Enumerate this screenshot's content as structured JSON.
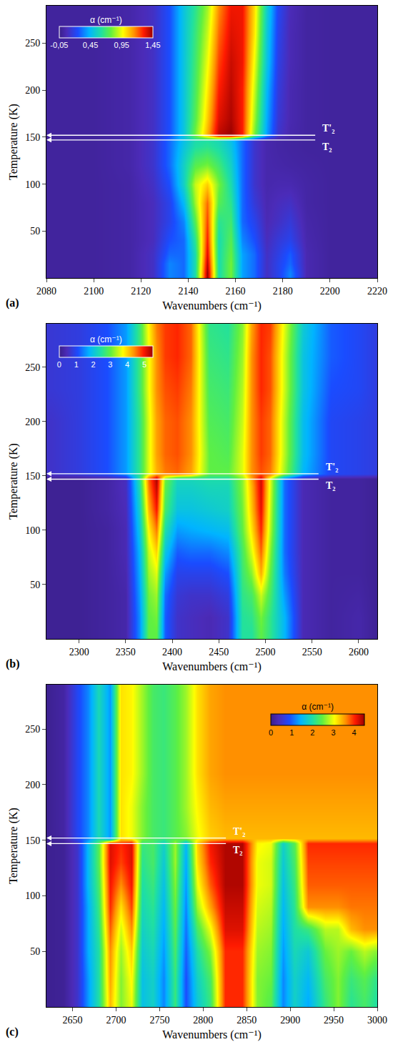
{
  "chart_data": [
    {
      "type": "heatmap",
      "panel_label": "(a)",
      "x_label": "Wavenumbers (cm⁻¹)",
      "y_label": "Temperature (K)",
      "xlim": [
        2080,
        2220
      ],
      "xticks": [
        2080,
        2100,
        2120,
        2140,
        2160,
        2180,
        2200,
        2220
      ],
      "ylim": [
        0,
        290
      ],
      "yticks": [
        50,
        100,
        150,
        200,
        250
      ],
      "colorbar": {
        "title": "α (cm⁻¹)",
        "range": [
          -0.05,
          1.45
        ],
        "ticks": [
          {
            "value": 1.45,
            "label": "1,45"
          },
          {
            "value": 0.95,
            "label": "0,95"
          },
          {
            "value": 0.45,
            "label": "0,45"
          },
          {
            "value": -0.05,
            "label": "-0,05"
          }
        ]
      },
      "annotations": [
        {
          "text": "T'₂",
          "y": 152
        },
        {
          "text": "T₂",
          "y": 147
        }
      ],
      "x": [
        2080,
        2100,
        2115,
        2125,
        2132,
        2138,
        2143,
        2148,
        2153,
        2158,
        2163,
        2168,
        2173,
        2178,
        2183,
        2190,
        2200,
        2220
      ],
      "y": [
        5,
        15,
        25,
        40,
        60,
        80,
        100,
        120,
        140,
        147,
        152,
        170,
        200,
        230,
        260,
        290
      ],
      "values": [
        [
          0,
          0,
          0.02,
          0.1,
          0.35,
          0.3,
          0.6,
          1.45,
          0.6,
          0.8,
          0.4,
          0.3,
          0.1,
          0.2,
          0.35,
          0.05,
          0,
          0
        ],
        [
          0,
          0,
          0.02,
          0.1,
          0.35,
          0.3,
          0.6,
          1.4,
          0.6,
          0.8,
          0.4,
          0.3,
          0.1,
          0.2,
          0.3,
          0.05,
          0,
          0
        ],
        [
          0,
          0,
          0.02,
          0.1,
          0.3,
          0.3,
          0.6,
          1.35,
          0.6,
          0.78,
          0.4,
          0.3,
          0.1,
          0.18,
          0.28,
          0.05,
          0,
          0
        ],
        [
          0,
          0,
          0.02,
          0.08,
          0.25,
          0.3,
          0.65,
          1.3,
          0.6,
          0.75,
          0.35,
          0.25,
          0.08,
          0.15,
          0.2,
          0.04,
          0,
          0
        ],
        [
          0,
          0,
          0.02,
          0.08,
          0.2,
          0.35,
          0.75,
          1.25,
          0.65,
          0.7,
          0.3,
          0.2,
          0.06,
          0.1,
          0.15,
          0.03,
          0,
          0
        ],
        [
          0,
          0,
          0.02,
          0.08,
          0.2,
          0.45,
          0.85,
          1.2,
          0.75,
          0.65,
          0.3,
          0.15,
          0.05,
          0.08,
          0.1,
          0.02,
          0,
          0
        ],
        [
          0,
          0,
          0.02,
          0.1,
          0.25,
          0.55,
          0.9,
          1.05,
          0.8,
          0.6,
          0.3,
          0.12,
          0.04,
          0.05,
          0.05,
          0.02,
          0,
          0
        ],
        [
          0,
          0,
          0.03,
          0.12,
          0.3,
          0.55,
          0.75,
          0.8,
          0.7,
          0.55,
          0.3,
          0.12,
          0.04,
          0.03,
          0.02,
          0.01,
          0,
          0
        ],
        [
          0,
          0,
          0.03,
          0.12,
          0.3,
          0.5,
          0.62,
          0.65,
          0.6,
          0.5,
          0.3,
          0.12,
          0.04,
          0.02,
          0.01,
          0,
          0,
          0
        ],
        [
          0,
          0,
          0.03,
          0.12,
          0.3,
          0.48,
          0.6,
          0.62,
          0.58,
          0.48,
          0.3,
          0.12,
          0.04,
          0.02,
          0.01,
          0,
          0,
          0
        ],
        [
          0,
          0,
          0.03,
          0.1,
          0.25,
          0.5,
          0.8,
          1.1,
          1.4,
          1.45,
          1.3,
          0.8,
          0.4,
          0.12,
          0.04,
          0.01,
          0,
          0
        ],
        [
          0,
          0,
          0.03,
          0.1,
          0.25,
          0.5,
          0.75,
          1.05,
          1.35,
          1.42,
          1.3,
          0.85,
          0.42,
          0.14,
          0.05,
          0.01,
          0,
          0
        ],
        [
          0,
          0,
          0.03,
          0.1,
          0.25,
          0.5,
          0.72,
          1.0,
          1.3,
          1.4,
          1.3,
          0.9,
          0.45,
          0.16,
          0.05,
          0.01,
          0,
          0
        ],
        [
          0,
          0,
          0.03,
          0.1,
          0.25,
          0.5,
          0.7,
          0.95,
          1.25,
          1.38,
          1.32,
          0.95,
          0.5,
          0.18,
          0.06,
          0.01,
          0,
          0
        ],
        [
          0,
          0,
          0.03,
          0.1,
          0.25,
          0.5,
          0.68,
          0.9,
          1.2,
          1.35,
          1.32,
          1.0,
          0.52,
          0.2,
          0.06,
          0.01,
          0,
          0
        ],
        [
          0,
          0,
          0.03,
          0.1,
          0.25,
          0.5,
          0.65,
          0.85,
          1.15,
          1.32,
          1.32,
          1.02,
          0.55,
          0.22,
          0.07,
          0.01,
          0,
          0
        ]
      ]
    },
    {
      "type": "heatmap",
      "panel_label": "(b)",
      "x_label": "Wavenumbers (cm⁻¹)",
      "y_label": "Temperature (K)",
      "xlim": [
        2265,
        2620
      ],
      "xticks": [
        2300,
        2350,
        2400,
        2450,
        2500,
        2550,
        2600
      ],
      "ylim": [
        0,
        290
      ],
      "yticks": [
        50,
        100,
        150,
        200,
        250
      ],
      "colorbar": {
        "title": "α (cm⁻¹)",
        "range": [
          0,
          5.5
        ],
        "ticks": [
          5,
          4,
          3,
          2,
          1,
          0
        ]
      },
      "annotations": [
        {
          "text": "T'₂",
          "y": 152
        },
        {
          "text": "T₂",
          "y": 147
        }
      ],
      "x": [
        2270,
        2300,
        2330,
        2350,
        2365,
        2375,
        2383,
        2392,
        2405,
        2420,
        2440,
        2460,
        2475,
        2485,
        2495,
        2505,
        2520,
        2540,
        2570,
        2600,
        2620
      ],
      "y": [
        5,
        20,
        40,
        60,
        80,
        100,
        120,
        140,
        147,
        152,
        170,
        200,
        230,
        260,
        290
      ],
      "values": [
        [
          0.1,
          0.1,
          0.2,
          0.3,
          1.5,
          3.0,
          3.0,
          1.2,
          0.6,
          0.5,
          0.4,
          0.6,
          2.5,
          2.5,
          3.0,
          2.6,
          1.8,
          0.4,
          0.2,
          0.3,
          0.1
        ],
        [
          0.1,
          0.1,
          0.2,
          0.3,
          1.5,
          3.0,
          3.1,
          1.2,
          0.6,
          0.5,
          0.4,
          0.6,
          2.5,
          2.6,
          3.1,
          2.6,
          1.8,
          0.4,
          0.2,
          0.3,
          0.1
        ],
        [
          0.1,
          0.1,
          0.2,
          0.3,
          1.6,
          3.1,
          3.3,
          1.3,
          0.7,
          0.6,
          0.6,
          0.8,
          2.6,
          2.8,
          3.5,
          2.8,
          1.6,
          0.4,
          0.2,
          0.25,
          0.1
        ],
        [
          0.1,
          0.1,
          0.2,
          0.35,
          1.7,
          3.3,
          3.6,
          1.6,
          0.9,
          0.9,
          0.9,
          1.1,
          2.7,
          3.2,
          4.2,
          3.0,
          1.4,
          0.4,
          0.2,
          0.2,
          0.1
        ],
        [
          0.1,
          0.1,
          0.2,
          0.4,
          1.8,
          3.5,
          4.0,
          2.0,
          1.2,
          1.3,
          1.3,
          1.5,
          2.8,
          3.6,
          4.6,
          3.2,
          1.3,
          0.4,
          0.2,
          0.2,
          0.1
        ],
        [
          0.1,
          0.1,
          0.2,
          0.4,
          2.0,
          3.8,
          4.5,
          2.4,
          1.6,
          1.7,
          1.8,
          1.9,
          3.0,
          3.9,
          4.9,
          3.4,
          1.3,
          0.4,
          0.2,
          0.2,
          0.1
        ],
        [
          0.1,
          0.1,
          0.25,
          0.45,
          2.2,
          4.2,
          5.0,
          2.8,
          2.0,
          2.0,
          2.1,
          2.2,
          3.1,
          4.1,
          5.1,
          3.5,
          1.3,
          0.4,
          0.2,
          0.2,
          0.1
        ],
        [
          0.1,
          0.1,
          0.25,
          0.5,
          2.4,
          4.5,
          5.3,
          3.0,
          2.2,
          2.2,
          2.3,
          2.3,
          3.2,
          4.2,
          5.2,
          3.6,
          1.3,
          0.4,
          0.2,
          0.2,
          0.1
        ],
        [
          0.1,
          0.1,
          0.25,
          0.5,
          2.5,
          4.6,
          5.4,
          3.1,
          2.3,
          2.3,
          2.4,
          2.4,
          3.2,
          4.3,
          5.2,
          3.6,
          1.3,
          0.4,
          0.2,
          0.2,
          0.1
        ],
        [
          0.6,
          0.8,
          1.1,
          1.6,
          2.6,
          3.6,
          4.2,
          4.5,
          4.6,
          4.3,
          3.0,
          3.0,
          3.6,
          4.4,
          4.7,
          4.5,
          3.3,
          1.8,
          1.0,
          0.9,
          0.8
        ],
        [
          0.6,
          0.8,
          1.1,
          1.6,
          2.6,
          3.6,
          4.3,
          4.6,
          4.7,
          4.4,
          3.0,
          2.9,
          3.6,
          4.4,
          4.8,
          4.6,
          3.4,
          1.9,
          1.0,
          0.9,
          0.8
        ],
        [
          0.6,
          0.8,
          1.1,
          1.6,
          2.6,
          3.6,
          4.3,
          4.6,
          4.7,
          4.4,
          2.9,
          2.8,
          3.5,
          4.4,
          4.8,
          4.6,
          3.4,
          1.9,
          1.0,
          0.9,
          0.8
        ],
        [
          0.7,
          0.8,
          1.1,
          1.6,
          2.7,
          3.7,
          4.4,
          4.7,
          4.8,
          4.5,
          2.8,
          2.7,
          3.4,
          4.4,
          4.9,
          4.7,
          3.5,
          2.0,
          1.1,
          1.0,
          0.8
        ],
        [
          0.7,
          0.8,
          1.1,
          1.6,
          2.7,
          3.7,
          4.4,
          4.8,
          4.9,
          4.6,
          2.7,
          2.6,
          3.3,
          4.4,
          4.9,
          4.7,
          3.5,
          2.0,
          1.2,
          1.0,
          0.8
        ],
        [
          0.7,
          0.8,
          1.1,
          1.6,
          2.7,
          3.8,
          4.5,
          4.8,
          4.9,
          4.6,
          2.6,
          2.5,
          3.2,
          4.3,
          4.9,
          4.8,
          3.6,
          2.1,
          1.2,
          1.0,
          0.8
        ]
      ]
    },
    {
      "type": "heatmap",
      "panel_label": "(c)",
      "x_label": "Wavenumbers (cm⁻¹)",
      "y_label": "Temperature (K)",
      "xlim": [
        2620,
        3000
      ],
      "xticks": [
        2650,
        2700,
        2750,
        2800,
        2850,
        2900,
        2950,
        3000
      ],
      "ylim": [
        0,
        290
      ],
      "yticks": [
        50,
        100,
        150,
        200,
        250
      ],
      "colorbar": {
        "title": "α (cm⁻¹)",
        "range": [
          0,
          4.5
        ],
        "ticks": [
          4,
          3,
          2,
          1,
          0
        ]
      },
      "annotations": [
        {
          "text": "T'₂",
          "y": 152
        },
        {
          "text": "T₂",
          "y": 147
        }
      ],
      "x": [
        2620,
        2640,
        2655,
        2668,
        2680,
        2693,
        2705,
        2718,
        2730,
        2742,
        2755,
        2768,
        2780,
        2793,
        2808,
        2825,
        2845,
        2862,
        2878,
        2892,
        2905,
        2920,
        2940,
        2955,
        2970,
        2985,
        3000
      ],
      "y": [
        5,
        25,
        50,
        70,
        90,
        110,
        130,
        147,
        152,
        180,
        210,
        250,
        290
      ],
      "values": [
        [
          0.05,
          0.1,
          0.5,
          1.3,
          2.0,
          3.4,
          2.6,
          3.0,
          1.6,
          1.8,
          1.2,
          2.2,
          0.9,
          1.7,
          2.2,
          4.0,
          4.0,
          2.6,
          2.4,
          1.2,
          1.8,
          1.4,
          2.2,
          2.6,
          2.1,
          2.3,
          2.0
        ],
        [
          0.05,
          0.1,
          0.5,
          1.3,
          2.0,
          3.5,
          2.6,
          3.1,
          1.6,
          1.8,
          1.2,
          2.2,
          0.9,
          1.8,
          2.3,
          4.0,
          4.0,
          2.6,
          2.5,
          1.2,
          1.8,
          1.5,
          2.3,
          2.6,
          2.2,
          2.4,
          2.1
        ],
        [
          0.05,
          0.1,
          0.5,
          1.4,
          2.0,
          3.6,
          2.7,
          3.3,
          1.7,
          1.9,
          1.3,
          2.3,
          1.0,
          2.0,
          2.6,
          4.0,
          4.0,
          2.7,
          2.6,
          1.3,
          1.9,
          1.7,
          2.5,
          2.7,
          2.5,
          2.8,
          2.6
        ],
        [
          0.05,
          0.1,
          0.5,
          1.4,
          2.1,
          3.8,
          2.9,
          3.6,
          1.8,
          2.0,
          1.4,
          2.4,
          1.1,
          2.3,
          3.0,
          4.2,
          4.2,
          2.8,
          2.7,
          1.4,
          2.0,
          2.2,
          2.8,
          2.8,
          3.4,
          3.6,
          3.6
        ],
        [
          0.05,
          0.1,
          0.5,
          1.4,
          2.2,
          4.0,
          3.2,
          3.9,
          1.9,
          2.1,
          1.5,
          2.5,
          1.2,
          2.7,
          3.5,
          4.3,
          4.3,
          2.9,
          2.8,
          1.5,
          2.1,
          3.6,
          3.6,
          3.6,
          3.7,
          3.7,
          3.7
        ],
        [
          0.05,
          0.1,
          0.5,
          1.5,
          2.3,
          4.1,
          3.6,
          4.1,
          2.0,
          2.2,
          1.6,
          2.6,
          1.3,
          3.0,
          3.8,
          4.4,
          4.4,
          3.0,
          2.9,
          1.6,
          2.2,
          3.8,
          3.8,
          3.8,
          3.8,
          3.8,
          3.8
        ],
        [
          0.05,
          0.1,
          0.5,
          1.5,
          2.4,
          4.2,
          3.9,
          4.2,
          2.1,
          2.3,
          1.7,
          2.7,
          1.4,
          3.2,
          4.0,
          4.4,
          4.4,
          3.0,
          2.9,
          1.7,
          2.3,
          3.9,
          3.9,
          3.9,
          3.9,
          3.9,
          3.9
        ],
        [
          0.05,
          0.1,
          0.5,
          1.5,
          2.4,
          4.2,
          4.0,
          4.2,
          2.2,
          2.3,
          1.8,
          2.7,
          1.5,
          3.3,
          4.1,
          4.4,
          4.4,
          3.1,
          3.0,
          1.8,
          2.4,
          4.0,
          4.0,
          4.0,
          4.0,
          4.0,
          4.0
        ],
        [
          0.05,
          0.2,
          0.8,
          1.2,
          1.9,
          1.3,
          3.2,
          3.0,
          2.6,
          2.3,
          2.2,
          2.4,
          2.6,
          3.0,
          3.3,
          3.4,
          3.4,
          3.4,
          3.4,
          3.4,
          3.4,
          3.4,
          3.4,
          3.4,
          3.4,
          3.4,
          3.4
        ],
        [
          0.05,
          0.2,
          0.8,
          1.2,
          1.9,
          1.3,
          3.2,
          3.0,
          2.6,
          2.3,
          2.2,
          2.4,
          2.7,
          3.1,
          3.4,
          3.5,
          3.5,
          3.5,
          3.5,
          3.5,
          3.5,
          3.5,
          3.5,
          3.5,
          3.5,
          3.5,
          3.5
        ],
        [
          0.05,
          0.2,
          0.8,
          1.2,
          1.9,
          1.3,
          3.2,
          3.1,
          2.7,
          2.3,
          2.2,
          2.4,
          2.7,
          3.2,
          3.5,
          3.6,
          3.6,
          3.6,
          3.6,
          3.6,
          3.6,
          3.6,
          3.6,
          3.6,
          3.6,
          3.6,
          3.6
        ],
        [
          0.05,
          0.2,
          0.8,
          1.2,
          1.9,
          1.3,
          3.2,
          3.1,
          2.7,
          2.3,
          2.2,
          2.4,
          2.7,
          3.2,
          3.5,
          3.6,
          3.6,
          3.6,
          3.6,
          3.6,
          3.6,
          3.6,
          3.6,
          3.6,
          3.6,
          3.6,
          3.6
        ],
        [
          0.05,
          0.2,
          0.8,
          1.2,
          1.9,
          1.3,
          3.2,
          3.1,
          2.7,
          2.3,
          2.2,
          2.4,
          2.7,
          3.2,
          3.5,
          3.6,
          3.6,
          3.6,
          3.6,
          3.6,
          3.6,
          3.6,
          3.6,
          3.6,
          3.6,
          3.6,
          3.6
        ]
      ]
    }
  ]
}
